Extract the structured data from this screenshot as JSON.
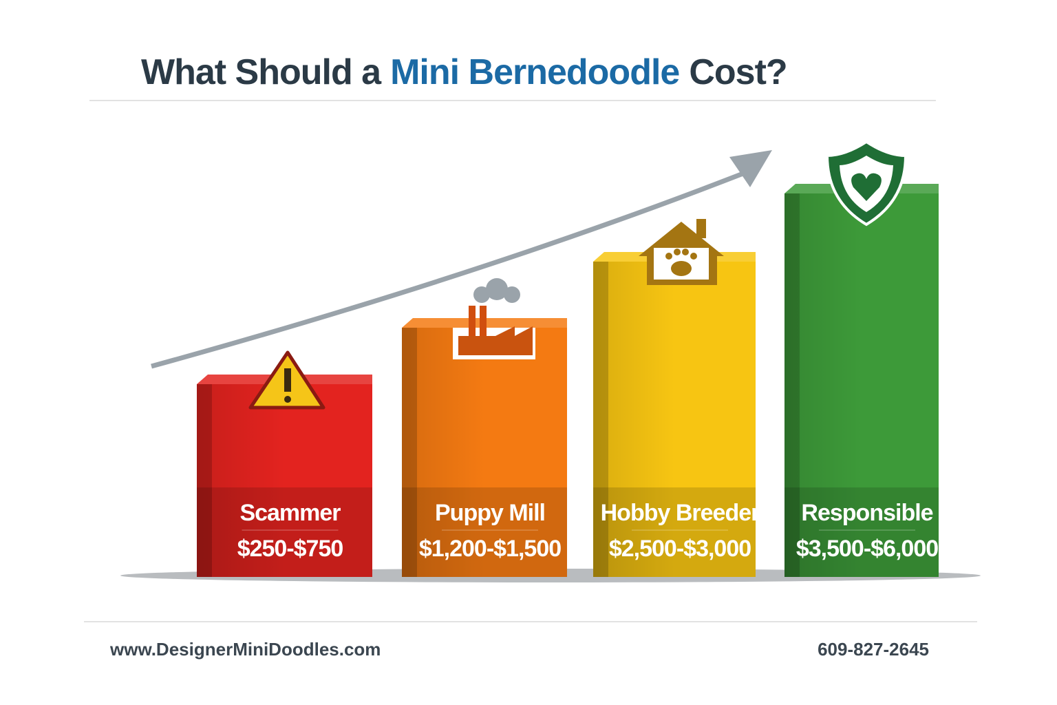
{
  "header": {
    "title_parts": [
      "What Should a",
      "Mini Bernedoodle",
      "Cost?"
    ]
  },
  "tiers": [
    {
      "label": "Scammer",
      "price": "$250-$750",
      "color": "#e3231f"
    },
    {
      "label": "Puppy Mill",
      "price": "$1,200-$1,500",
      "color": "#f47a12"
    },
    {
      "label": "Hobby Breeder",
      "price": "$2,500-$3,000",
      "color": "#f7c512"
    },
    {
      "label": "Responsible",
      "price": "$3,500-$6,000",
      "color": "#3d9a39"
    }
  ],
  "footer": {
    "website": "www.DesignerMiniDoodles.com",
    "phone": "609-827-2645"
  }
}
